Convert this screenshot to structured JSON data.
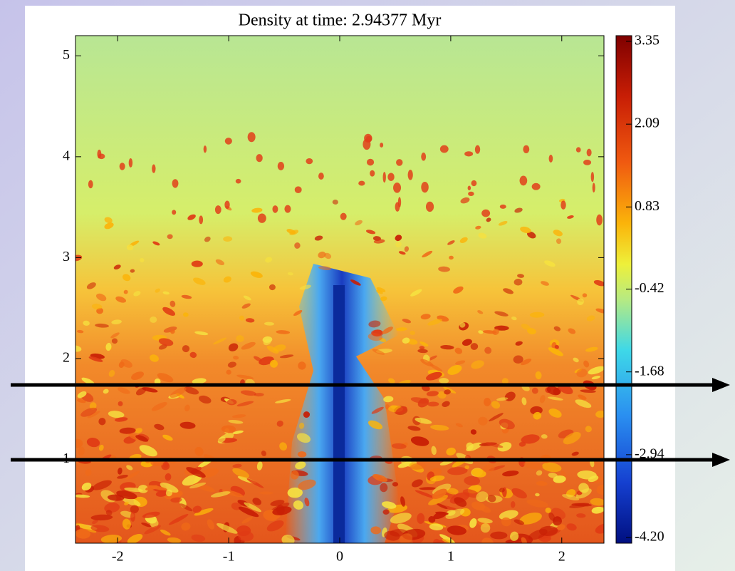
{
  "chart_data": {
    "type": "heatmap",
    "title": "Density at time: 2.94377 Myr",
    "xlim": [
      -2.38,
      2.38
    ],
    "xticks": [
      -2,
      -1,
      0,
      1,
      2
    ],
    "ylim": [
      0.17,
      5.2
    ],
    "yticks": [
      1,
      2,
      3,
      4,
      5
    ],
    "colorbar": {
      "lim": [
        -4.2,
        3.35
      ],
      "ticks": [
        {
          "value": 3.35,
          "label": "3.35"
        },
        {
          "value": 2.09,
          "label": "2.09"
        },
        {
          "value": 0.83,
          "label": "0.83"
        },
        {
          "value": -0.42,
          "label": "-0.42"
        },
        {
          "value": -1.68,
          "label": "-1.68"
        },
        {
          "value": -2.94,
          "label": "-2.94"
        },
        {
          "value": -4.2,
          "label": "-4.20"
        }
      ]
    }
  }
}
